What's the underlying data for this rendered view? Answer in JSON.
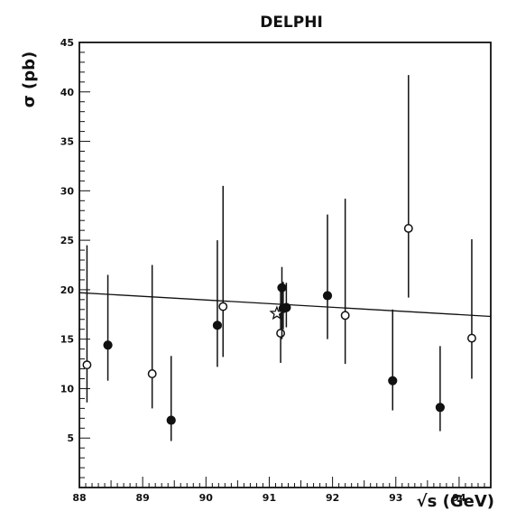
{
  "chart_data": {
    "type": "scatter",
    "title": "DELPHI",
    "xlabel": "√s  (GeV)",
    "ylabel": "σ  (pb)",
    "xlim": [
      88,
      94.5
    ],
    "ylim": [
      0,
      45
    ],
    "x_ticks": [
      "88",
      "89",
      "90",
      "91",
      "92",
      "93",
      "94"
    ],
    "y_ticks": [
      "5",
      "10",
      "15",
      "20",
      "25",
      "30",
      "35",
      "40",
      "45"
    ],
    "grid": false,
    "series": [
      {
        "marker": "open-circle",
        "points": [
          {
            "x": 88.12,
            "y": 12.4,
            "ylow": 8.6,
            "yhigh": 24.5
          },
          {
            "x": 89.15,
            "y": 11.5,
            "ylow": 8.0,
            "yhigh": 22.5
          },
          {
            "x": 90.27,
            "y": 18.3,
            "ylow": 13.2,
            "yhigh": 30.5
          },
          {
            "x": 91.18,
            "y": 15.6,
            "ylow": 12.6,
            "yhigh": 20.0
          },
          {
            "x": 92.2,
            "y": 17.4,
            "ylow": 12.5,
            "yhigh": 29.2
          },
          {
            "x": 93.2,
            "y": 26.2,
            "ylow": 19.2,
            "yhigh": 41.7
          },
          {
            "x": 94.2,
            "y": 15.1,
            "ylow": 11.0,
            "yhigh": 25.1
          }
        ]
      },
      {
        "marker": "filled-circle",
        "points": [
          {
            "x": 88.45,
            "y": 14.4,
            "ylow": 10.8,
            "yhigh": 21.5
          },
          {
            "x": 89.45,
            "y": 6.8,
            "ylow": 4.7,
            "yhigh": 13.3
          },
          {
            "x": 90.18,
            "y": 16.4,
            "ylow": 12.2,
            "yhigh": 25.0
          },
          {
            "x": 91.2,
            "y": 20.2,
            "ylow": 15.0,
            "yhigh": 22.3
          },
          {
            "x": 91.22,
            "y": 18.1,
            "ylow": 16.0,
            "yhigh": 20.8
          },
          {
            "x": 91.27,
            "y": 18.2,
            "ylow": 16.2,
            "yhigh": 20.7
          },
          {
            "x": 91.92,
            "y": 19.4,
            "ylow": 15.0,
            "yhigh": 27.6
          },
          {
            "x": 92.95,
            "y": 10.8,
            "ylow": 7.8,
            "yhigh": 18.0
          },
          {
            "x": 93.7,
            "y": 8.1,
            "ylow": 5.7,
            "yhigh": 14.3
          }
        ]
      },
      {
        "marker": "open-star",
        "points": [
          {
            "x": 91.12,
            "y": 17.6,
            "ylow": 17.6,
            "yhigh": 17.6
          }
        ]
      }
    ],
    "fit_line": {
      "x": [
        88,
        94.5
      ],
      "y": [
        19.7,
        17.3
      ]
    }
  }
}
